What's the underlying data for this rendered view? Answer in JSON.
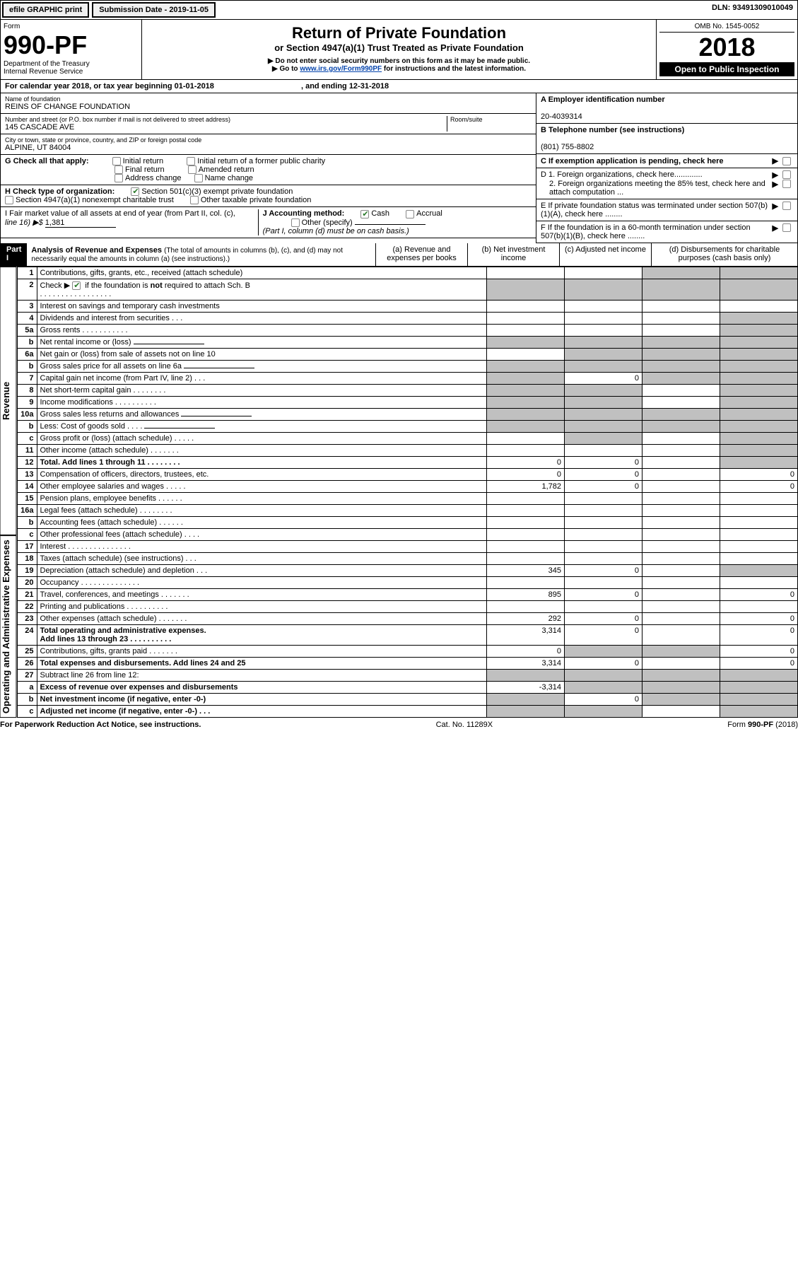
{
  "topbar": {
    "efile": "efile GRAPHIC print",
    "sub_label": "Submission Date - 2019-11-05",
    "dln": "DLN: 93491309010049"
  },
  "header": {
    "form_word": "Form",
    "form_no": "990-PF",
    "dept": "Department of the Treasury",
    "irs": "Internal Revenue Service",
    "title": "Return of Private Foundation",
    "subtitle": "or Section 4947(a)(1) Trust Treated as Private Foundation",
    "note1": "▶ Do not enter social security numbers on this form as it may be made public.",
    "note2_pre": "▶ Go to ",
    "note2_link": "www.irs.gov/Form990PF",
    "note2_post": " for instructions and the latest information.",
    "omb": "OMB No. 1545-0052",
    "year": "2018",
    "open": "Open to Public Inspection"
  },
  "cal": {
    "line": "For calendar year 2018, or tax year beginning 01-01-2018",
    "ending": ", and ending 12-31-2018"
  },
  "id": {
    "name_label": "Name of foundation",
    "name": "REINS OF CHANGE FOUNDATION",
    "addr_label": "Number and street (or P.O. box number if mail is not delivered to street address)",
    "addr": "145 CASCADE AVE",
    "room_label": "Room/suite",
    "city_label": "City or town, state or province, country, and ZIP or foreign postal code",
    "city": "ALPINE, UT  84004",
    "a_label": "A Employer identification number",
    "a_val": "20-4039314",
    "b_label": "B Telephone number (see instructions)",
    "b_val": "(801) 755-8802",
    "c_label": "C If exemption application is pending, check here",
    "d1": "D 1. Foreign organizations, check here.............",
    "d2": "2. Foreign organizations meeting the 85% test, check here and attach computation ...",
    "e": "E  If private foundation status was terminated under section 507(b)(1)(A), check here ........",
    "f": "F  If the foundation is in a 60-month termination under section 507(b)(1)(B), check here ........"
  },
  "g": {
    "label": "G Check all that apply:",
    "o1": "Initial return",
    "o2": "Initial return of a former public charity",
    "o3": "Final return",
    "o4": "Amended return",
    "o5": "Address change",
    "o6": "Name change"
  },
  "h": {
    "label": "H Check type of organization:",
    "o1": "Section 501(c)(3) exempt private foundation",
    "o2": "Section 4947(a)(1) nonexempt charitable trust",
    "o3": "Other taxable private foundation"
  },
  "i": {
    "label": "I Fair market value of all assets at end of year (from Part II, col. (c),",
    "line16": "line 16) ▶$ ",
    "val": "1,381"
  },
  "j": {
    "label": "J Accounting method:",
    "cash": "Cash",
    "accrual": "Accrual",
    "other": "Other (specify)",
    "note": "(Part I, column (d) must be on cash basis.)"
  },
  "part1": {
    "title": "Part I",
    "heading": "Analysis of Revenue and Expenses",
    "note": "(The total of amounts in columns (b), (c), and (d) may not necessarily equal the amounts in column (a) (see instructions).)",
    "col_a": "(a)   Revenue and expenses per books",
    "col_b": "(b)  Net investment income",
    "col_c": "(c)  Adjusted net income",
    "col_d": "(d)  Disbursements for charitable purposes (cash basis only)"
  },
  "side": {
    "revenue": "Revenue",
    "expenses": "Operating and Administrative Expenses"
  },
  "rows": {
    "r1": {
      "n": "1",
      "d": "Contributions, gifts, grants, etc., received (attach schedule)"
    },
    "r2": {
      "n": "2",
      "d": "Check ▶        if the foundation is not required to attach Sch. B",
      "d2": ".   .   .   .   .   .   .   .   .   .   .   .   .   .   .   .   ."
    },
    "r3": {
      "n": "3",
      "d": "Interest on savings and temporary cash investments"
    },
    "r4": {
      "n": "4",
      "d": "Dividends and interest from securities   .   .   ."
    },
    "r5a": {
      "n": "5a",
      "d": "Gross rents   .   .   .   .   .   .   .   .   .   .   ."
    },
    "r5b": {
      "n": "b",
      "d": "Net rental income or (loss)  "
    },
    "r6a": {
      "n": "6a",
      "d": "Net gain or (loss) from sale of assets not on line 10"
    },
    "r6b": {
      "n": "b",
      "d": "Gross sales price for all assets on line 6a  "
    },
    "r7": {
      "n": "7",
      "d": "Capital gain net income (from Part IV, line 2)   .   .   .",
      "b": "0"
    },
    "r8": {
      "n": "8",
      "d": "Net short-term capital gain   .   .   .   .   .   .   .   ."
    },
    "r9": {
      "n": "9",
      "d": "Income modifications   .   .   .   .   .   .   .   .   .   ."
    },
    "r10a": {
      "n": "10a",
      "d": "Gross sales less returns and allowances  "
    },
    "r10b": {
      "n": "b",
      "d": "Less: Cost of goods sold   .   .   .   ."
    },
    "r10c": {
      "n": "c",
      "d": "Gross profit or (loss) (attach schedule)   .   .   .   .   ."
    },
    "r11": {
      "n": "11",
      "d": "Other income (attach schedule)   .   .   .   .   .   .   ."
    },
    "r12": {
      "n": "12",
      "d": "Total. Add lines 1 through 11   .   .   .   .   .   .   .   .",
      "a": "0",
      "b": "0"
    },
    "r13": {
      "n": "13",
      "d": "Compensation of officers, directors, trustees, etc.",
      "a": "0",
      "b": "0",
      "dd": "0"
    },
    "r14": {
      "n": "14",
      "d": "Other employee salaries and wages   .   .   .   .   .",
      "a": "1,782",
      "b": "0",
      "dd": "0"
    },
    "r15": {
      "n": "15",
      "d": "Pension plans, employee benefits   .   .   .   .   .   ."
    },
    "r16a": {
      "n": "16a",
      "d": "Legal fees (attach schedule)   .   .   .   .   .   .   .   ."
    },
    "r16b": {
      "n": "b",
      "d": "Accounting fees (attach schedule)   .   .   .   .   .   ."
    },
    "r16c": {
      "n": "c",
      "d": "Other professional fees (attach schedule)   .   .   .   ."
    },
    "r17": {
      "n": "17",
      "d": "Interest   .   .   .   .   .   .   .   .   .   .   .   .   .   .   ."
    },
    "r18": {
      "n": "18",
      "d": "Taxes (attach schedule) (see instructions)   .   .   ."
    },
    "r19": {
      "n": "19",
      "d": "Depreciation (attach schedule) and depletion   .   .   .",
      "a": "345",
      "b": "0"
    },
    "r20": {
      "n": "20",
      "d": "Occupancy   .   .   .   .   .   .   .   .   .   .   .   .   .   ."
    },
    "r21": {
      "n": "21",
      "d": "Travel, conferences, and meetings   .   .   .   .   .   .   .",
      "a": "895",
      "b": "0",
      "dd": "0"
    },
    "r22": {
      "n": "22",
      "d": "Printing and publications   .   .   .   .   .   .   .   .   .   ."
    },
    "r23": {
      "n": "23",
      "d": "Other expenses (attach schedule)   .   .   .   .   .   .   .",
      "a": "292",
      "b": "0",
      "dd": "0"
    },
    "r24": {
      "n": "24",
      "d": "Total operating and administrative expenses.",
      "d2": "Add lines 13 through 23   .   .   .   .   .   .   .   .   .   .",
      "a": "3,314",
      "b": "0",
      "dd": "0"
    },
    "r25": {
      "n": "25",
      "d": "Contributions, gifts, grants paid   .   .   .   .   .   .   .",
      "a": "0",
      "dd": "0"
    },
    "r26": {
      "n": "26",
      "d": "Total expenses and disbursements. Add lines 24 and 25",
      "a": "3,314",
      "b": "0",
      "dd": "0"
    },
    "r27": {
      "n": "27",
      "d": "Subtract line 26 from line 12:"
    },
    "r27a": {
      "n": "a",
      "d": "Excess of revenue over expenses and disbursements",
      "a": "-3,314"
    },
    "r27b": {
      "n": "b",
      "d": "Net investment income (if negative, enter -0-)",
      "b": "0"
    },
    "r27c": {
      "n": "c",
      "d": "Adjusted net income (if negative, enter -0-)   .   .   ."
    }
  },
  "footer": {
    "left": "For Paperwork Reduction Act Notice, see instructions.",
    "mid": "Cat. No. 11289X",
    "right": "Form 990-PF (2018)"
  }
}
